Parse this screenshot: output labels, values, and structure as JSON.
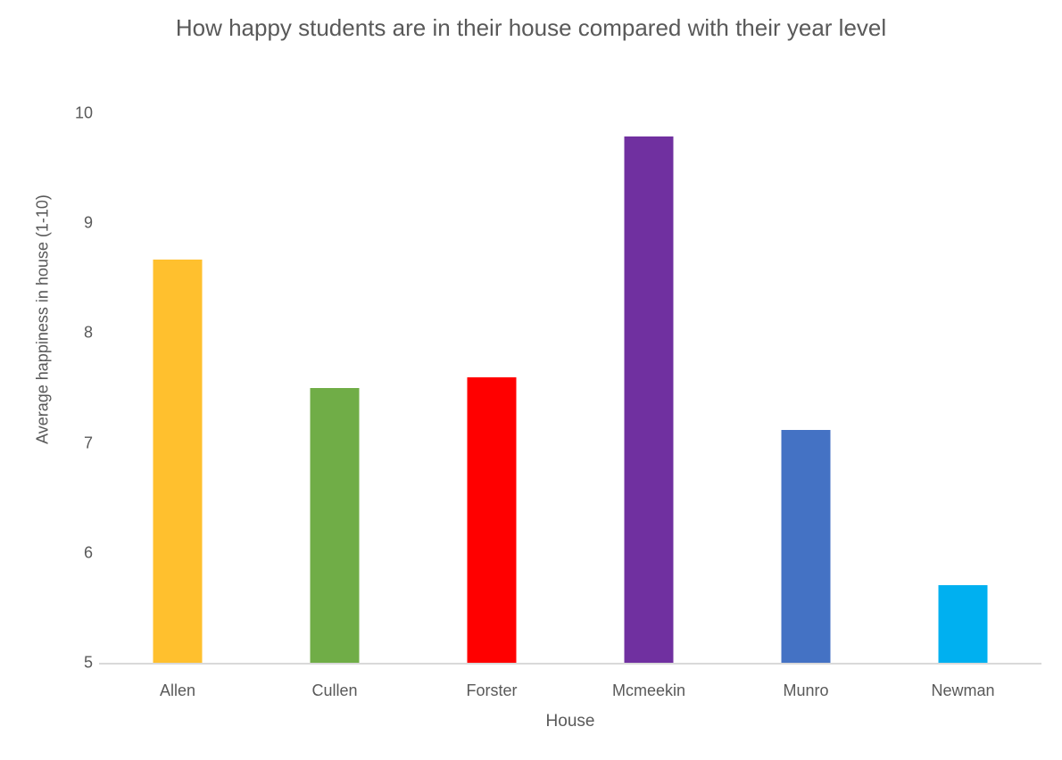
{
  "chart_data": {
    "type": "bar",
    "title": "How happy students are in their house compared with their year level",
    "xlabel": "House",
    "ylabel": "Average happiness in house (1-10)",
    "categories": [
      "Allen",
      "Cullen",
      "Forster",
      "Mcmeekin",
      "Munro",
      "Newman"
    ],
    "values": [
      8.67,
      7.5,
      7.6,
      9.79,
      7.12,
      5.71
    ],
    "bar_colors": [
      "#FFC02E",
      "#70AD47",
      "#FF0000",
      "#7030A0",
      "#4472C4",
      "#00B0F0"
    ],
    "ylim": [
      5,
      10
    ],
    "yticks": [
      5,
      6,
      7,
      8,
      9,
      10
    ],
    "grid": "off",
    "legend": "none",
    "text_color": "#595959",
    "axis_line_color": "#D9D9D9",
    "background_color": "#FFFFFF"
  }
}
